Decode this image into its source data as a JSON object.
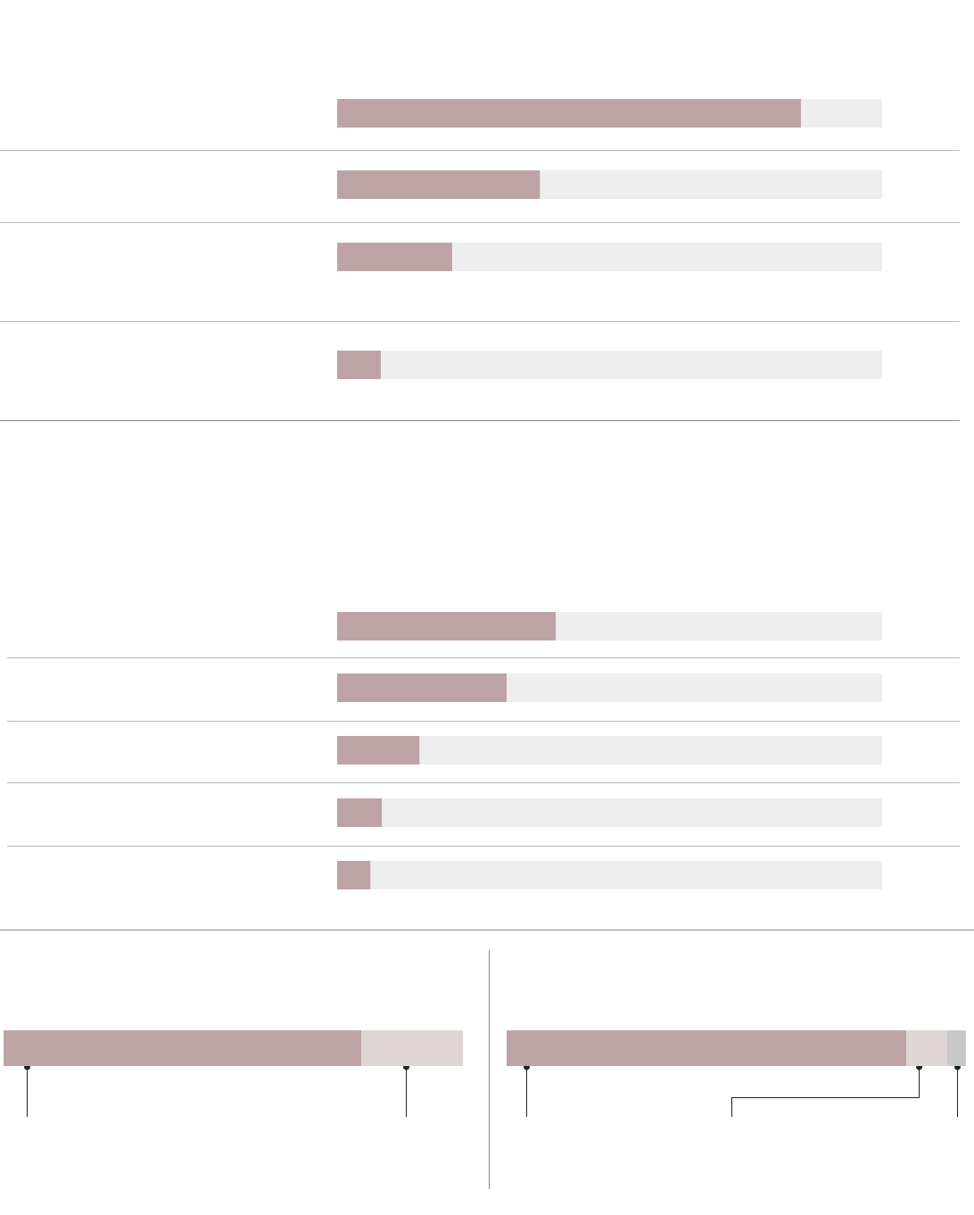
{
  "chart_data": [
    {
      "type": "bar",
      "orientation": "horizontal",
      "xlim": [
        0,
        100
      ],
      "color": "#bea3a6",
      "track_color": "#eeeeee",
      "values": [
        85.1,
        37.2,
        21.1,
        8
      ]
    },
    {
      "type": "bar",
      "orientation": "horizontal",
      "xlim": [
        0,
        100
      ],
      "color": "#bea3a6",
      "track_color": "#eeeeee",
      "values": [
        40.1,
        31.1,
        15.1,
        8.2,
        6.1
      ]
    },
    {
      "type": "stacked_bar",
      "orientation": "horizontal",
      "xlim": [
        0,
        100
      ],
      "series": [
        {
          "color": "#bea3a6",
          "values": [
            77.9
          ]
        },
        {
          "color": "#e0d5d5",
          "values": [
            22.1
          ]
        }
      ]
    },
    {
      "type": "stacked_bar",
      "orientation": "horizontal",
      "xlim": [
        0,
        100
      ],
      "series": [
        {
          "color": "#bea3a6",
          "values": [
            87
          ]
        },
        {
          "color": "#e0d5d5",
          "values": [
            8.9
          ]
        },
        {
          "color": "#c8c8c8",
          "values": [
            4.1
          ]
        }
      ]
    }
  ]
}
